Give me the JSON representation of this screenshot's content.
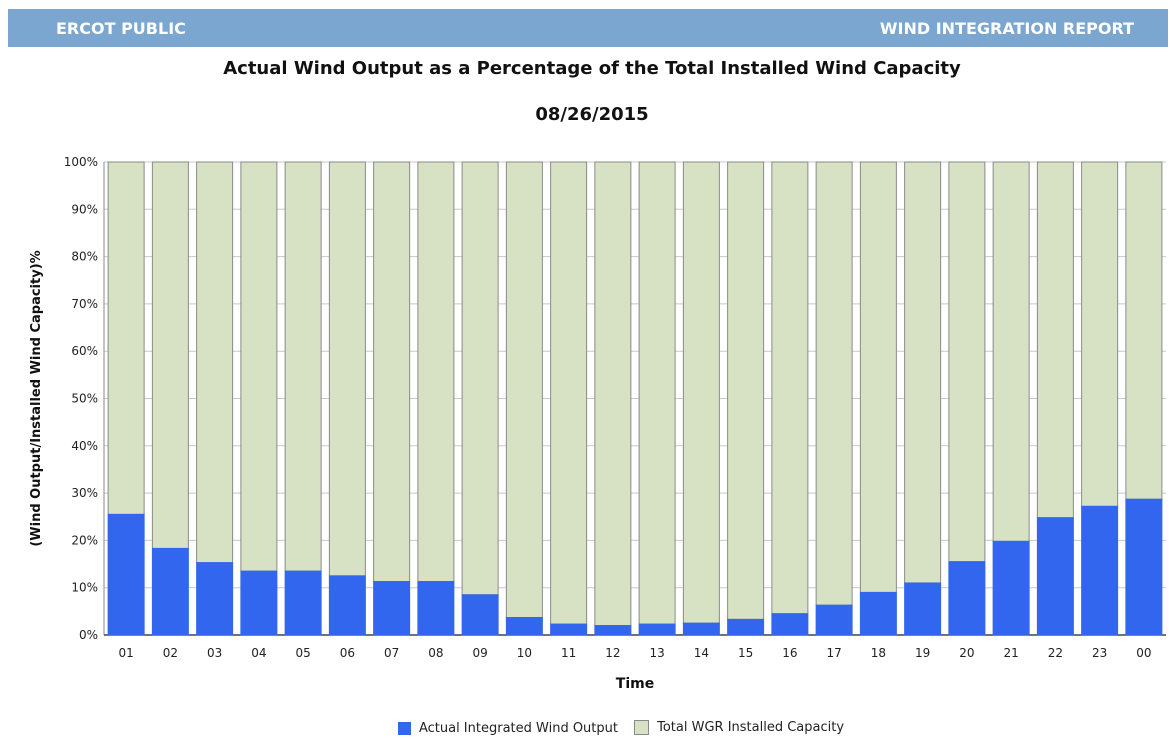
{
  "header": {
    "left_label": "ERCOT PUBLIC",
    "right_label": "WIND INTEGRATION REPORT"
  },
  "colors": {
    "banner": "#7aa6d0",
    "actual": "#3366ee",
    "capacity": "#d6e2c3",
    "bar_border": "#8a8a8a"
  },
  "chart_data": {
    "type": "bar",
    "stacked": true,
    "title": "Actual Wind Output as a Percentage of the Total Installed Wind Capacity",
    "subtitle": "08/26/2015",
    "xlabel": "Time",
    "ylabel": "(Wind Output/Installed Wind Capacity)%",
    "ylim": [
      0,
      100
    ],
    "yticks": [
      "0%",
      "10%",
      "20%",
      "30%",
      "40%",
      "50%",
      "60%",
      "70%",
      "80%",
      "90%",
      "100%"
    ],
    "grid": true,
    "legend_position": "bottom",
    "categories": [
      "01",
      "02",
      "03",
      "04",
      "05",
      "06",
      "07",
      "08",
      "09",
      "10",
      "11",
      "12",
      "13",
      "14",
      "15",
      "16",
      "17",
      "18",
      "19",
      "20",
      "21",
      "22",
      "23",
      "00"
    ],
    "series": [
      {
        "name": "Actual Integrated Wind Output",
        "values": [
          25.5,
          18.3,
          15.3,
          13.5,
          13.5,
          12.5,
          11.3,
          11.3,
          8.5,
          3.7,
          2.3,
          2.0,
          2.3,
          2.5,
          3.3,
          4.5,
          6.3,
          9.0,
          11.0,
          15.5,
          19.8,
          24.8,
          27.2,
          28.7
        ]
      },
      {
        "name": "Total WGR Installed Capacity",
        "values": [
          74.5,
          81.7,
          84.7,
          86.5,
          86.5,
          87.5,
          88.7,
          88.7,
          91.5,
          96.3,
          97.7,
          98.0,
          97.7,
          97.5,
          96.7,
          95.5,
          93.7,
          91.0,
          89.0,
          84.5,
          80.2,
          75.2,
          72.8,
          71.3
        ]
      }
    ]
  }
}
